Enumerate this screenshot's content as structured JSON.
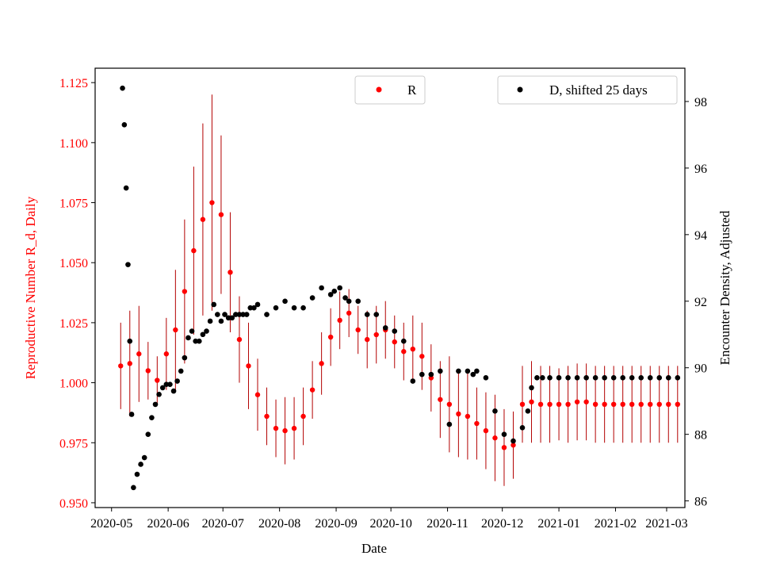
{
  "chart_data": {
    "type": "scatter",
    "title": "",
    "xlabel": "Date",
    "ylabel_left": "Reproductive Number R_d, Daily",
    "ylabel_right": "Encounter Density, Adjusted",
    "x_ticks": [
      "2020-05",
      "2020-06",
      "2020-07",
      "2020-08",
      "2020-09",
      "2020-10",
      "2020-11",
      "2020-12",
      "2021-01",
      "2021-02",
      "2021-03"
    ],
    "x_range_days": [
      -9,
      314
    ],
    "y_left": {
      "range": [
        0.948,
        1.131
      ],
      "ticks": [
        "0.950",
        "0.975",
        "1.000",
        "1.025",
        "1.050",
        "1.075",
        "1.100",
        "1.125"
      ],
      "color": "#ff0000"
    },
    "y_right": {
      "range": [
        85.8,
        99.0
      ],
      "ticks": [
        "86",
        "88",
        "90",
        "92",
        "94",
        "96",
        "98"
      ],
      "color": "#000000"
    },
    "series": [
      {
        "name": "R",
        "axis": "left",
        "color": "#ff0000",
        "errorbar_color": "#b30000",
        "x_days": [
          5,
          10,
          15,
          20,
          25,
          30,
          35,
          40,
          45,
          50,
          55,
          60,
          65,
          70,
          75,
          80,
          85,
          90,
          95,
          100,
          105,
          110,
          115,
          120,
          125,
          130,
          135,
          140,
          145,
          150,
          155,
          160,
          165,
          170,
          175,
          180,
          185,
          190,
          195,
          200,
          205,
          210,
          215,
          220,
          225,
          230,
          235,
          240,
          245,
          250,
          255,
          260,
          265,
          270,
          275,
          280,
          285,
          290,
          295,
          300,
          305,
          310
        ],
        "y": [
          1.007,
          1.008,
          1.012,
          1.005,
          1.001,
          1.012,
          1.022,
          1.038,
          1.055,
          1.068,
          1.075,
          1.07,
          1.046,
          1.018,
          1.007,
          0.995,
          0.986,
          0.981,
          0.98,
          0.981,
          0.986,
          0.997,
          1.008,
          1.019,
          1.026,
          1.029,
          1.022,
          1.018,
          1.02,
          1.022,
          1.017,
          1.013,
          1.014,
          1.011,
          1.002,
          0.993,
          0.991,
          0.987,
          0.986,
          0.983,
          0.98,
          0.977,
          0.973,
          0.974,
          0.991,
          0.992,
          0.991,
          0.991,
          0.991,
          0.991,
          0.992,
          0.992,
          0.991,
          0.991,
          0.991,
          0.991,
          0.991,
          0.991,
          0.991,
          0.991,
          0.991,
          0.991
        ],
        "err": [
          0.018,
          0.022,
          0.02,
          0.012,
          0.01,
          0.015,
          0.025,
          0.03,
          0.035,
          0.04,
          0.045,
          0.033,
          0.025,
          0.018,
          0.018,
          0.015,
          0.012,
          0.012,
          0.014,
          0.013,
          0.012,
          0.012,
          0.013,
          0.012,
          0.012,
          0.01,
          0.01,
          0.012,
          0.012,
          0.012,
          0.011,
          0.012,
          0.014,
          0.014,
          0.014,
          0.016,
          0.02,
          0.018,
          0.018,
          0.015,
          0.016,
          0.018,
          0.016,
          0.014,
          0.016,
          0.017,
          0.016,
          0.016,
          0.015,
          0.016,
          0.016,
          0.016,
          0.016,
          0.016,
          0.016,
          0.016,
          0.016,
          0.016,
          0.016,
          0.016,
          0.016,
          0.016
        ]
      },
      {
        "name": "D, shifted 25 days",
        "axis": "right",
        "color": "#000000",
        "x_days": [
          6,
          7,
          8,
          9,
          10,
          11,
          12,
          14,
          16,
          18,
          20,
          22,
          24,
          26,
          28,
          30,
          32,
          34,
          36,
          38,
          40,
          42,
          44,
          46,
          48,
          50,
          52,
          54,
          56,
          58,
          60,
          62,
          64,
          66,
          68,
          70,
          72,
          74,
          76,
          78,
          80,
          85,
          90,
          95,
          100,
          105,
          110,
          115,
          120,
          122,
          125,
          128,
          130,
          135,
          140,
          145,
          150,
          155,
          160,
          165,
          170,
          175,
          180,
          185,
          190,
          195,
          198,
          200,
          205,
          210,
          215,
          220,
          225,
          228,
          230,
          233,
          236,
          240,
          245,
          250,
          255,
          260,
          265,
          270,
          275,
          280,
          285,
          290,
          295,
          300,
          305,
          310
        ],
        "y": [
          98.4,
          97.3,
          95.4,
          93.1,
          90.8,
          88.6,
          86.4,
          86.8,
          87.1,
          87.3,
          88.0,
          88.5,
          88.9,
          89.2,
          89.4,
          89.5,
          89.5,
          89.3,
          89.6,
          89.9,
          90.3,
          90.9,
          91.1,
          90.8,
          90.8,
          91.0,
          91.1,
          91.4,
          91.9,
          91.6,
          91.4,
          91.6,
          91.5,
          91.5,
          91.6,
          91.6,
          91.6,
          91.6,
          91.8,
          91.8,
          91.9,
          91.6,
          91.8,
          92.0,
          91.8,
          91.8,
          92.1,
          92.4,
          92.2,
          92.3,
          92.4,
          92.1,
          92.0,
          92.0,
          91.6,
          91.6,
          91.2,
          91.1,
          90.8,
          89.6,
          89.8,
          89.8,
          89.9,
          88.3,
          89.9,
          89.9,
          89.8,
          89.9,
          89.7,
          88.7,
          88.0,
          87.8,
          88.2,
          88.7,
          89.4,
          89.7,
          89.7,
          89.7,
          89.7,
          89.7,
          89.7,
          89.7,
          89.7,
          89.7,
          89.7,
          89.7,
          89.7,
          89.7,
          89.7,
          89.7,
          89.7,
          89.7
        ]
      }
    ],
    "legend": [
      {
        "label": "R",
        "color": "#ff0000",
        "placement": "top-center"
      },
      {
        "label": "D, shifted 25 days",
        "color": "#000000",
        "placement": "top-right"
      }
    ]
  }
}
